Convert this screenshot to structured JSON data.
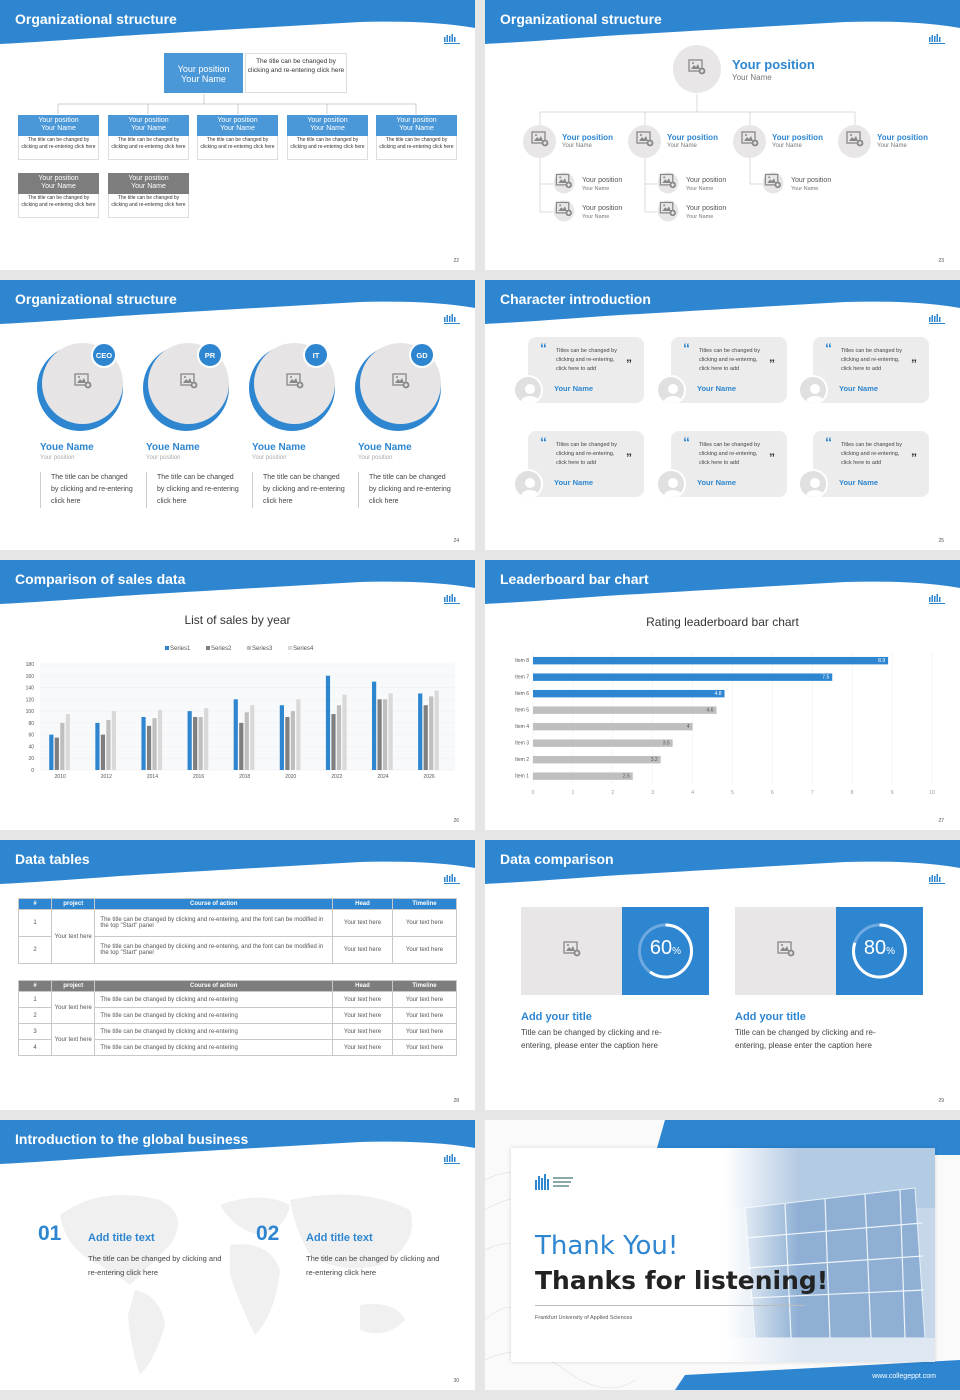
{
  "s1": {
    "title": "Organizational structure",
    "num": "22",
    "top": {
      "pos": "Your position",
      "name": "Your Name",
      "desc": "The title can be changed by clicking and re-entering click here"
    },
    "row1": [
      {
        "pos": "Your position",
        "name": "Your Name",
        "desc": "The title can be changed by clicking and re-entering click here"
      },
      {
        "pos": "Your position",
        "name": "Your Name",
        "desc": "The title can be changed by clicking and re-entering click here"
      },
      {
        "pos": "Your position",
        "name": "Your Name",
        "desc": "The title can be changed by clicking and re-entering click here"
      },
      {
        "pos": "Your position",
        "name": "Your Name",
        "desc": "The title can be changed by clicking and re-entering click here"
      },
      {
        "pos": "Your position",
        "name": "Your Name",
        "desc": "The title can be changed by clicking and re-entering click here"
      }
    ],
    "row2": [
      {
        "pos": "Your position",
        "name": "Your Name",
        "desc": "The title can be changed by clicking and re-entering click here"
      },
      {
        "pos": "Your position",
        "name": "Your Name",
        "desc": "The title can be changed by clicking and re-entering click here"
      }
    ]
  },
  "s2": {
    "title": "Organizational structure",
    "num": "23",
    "top": {
      "pos": "Your position",
      "name": "Your Name"
    },
    "row": [
      {
        "pos": "Your position",
        "name": "Your Name"
      },
      {
        "pos": "Your position",
        "name": "Your Name"
      },
      {
        "pos": "Your position",
        "name": "Your Name"
      },
      {
        "pos": "Your position",
        "name": "Your Name"
      }
    ],
    "sub": [
      {
        "pos": "Your position",
        "name": "Your Name"
      },
      {
        "pos": "Your position",
        "name": "Your Name"
      },
      {
        "pos": "Your position",
        "name": "Your Name"
      },
      {
        "pos": "Your position",
        "name": "Your Name"
      },
      {
        "pos": "Your position",
        "name": "Your Name"
      }
    ]
  },
  "s3": {
    "title": "Organizational structure",
    "num": "24",
    "people": [
      {
        "badge": "CEO",
        "name": "Youe Name",
        "pos": "Your position",
        "desc": "The title can be changed by clicking and re-entering click here"
      },
      {
        "badge": "PR",
        "name": "Youe Name",
        "pos": "Your position",
        "desc": "The title can be changed by clicking and re-entering click here"
      },
      {
        "badge": "IT",
        "name": "Youe Name",
        "pos": "Your position",
        "desc": "The title can be changed by clicking and re-entering click here"
      },
      {
        "badge": "GD",
        "name": "Youe Name",
        "pos": "Your position",
        "desc": "The title can be changed by clicking and re-entering click here"
      }
    ]
  },
  "s4": {
    "title": "Character introduction",
    "num": "25",
    "quote": "Titles can be changed by clicking and re-entering, click here to add",
    "name": "Your Name"
  },
  "s5": {
    "title": "Comparison of sales data",
    "num": "26"
  },
  "s6": {
    "title": "Leaderboard bar chart",
    "num": "27"
  },
  "s7": {
    "title": "Data tables",
    "num": "28",
    "h1": [
      "#",
      "project",
      "Course of action",
      "Head",
      "Timeline"
    ],
    "t1": [
      {
        "n": "1",
        "c": "The title can be changed by clicking and re-entering, and the font can be modified in the top \"Start\" panel"
      },
      {
        "n": "2",
        "c": "The title can be changed by clicking and re-entering, and the font can be modified in the top \"Start\" panel"
      }
    ],
    "proj": "Your text here",
    "cell": "Your text here",
    "t2": [
      {
        "n": "1",
        "c": "The title can be changed by clicking and re-entering"
      },
      {
        "n": "2",
        "c": "The title can be changed by clicking and re-entering"
      },
      {
        "n": "3",
        "c": "The title can be changed by clicking and re-entering"
      },
      {
        "n": "4",
        "c": "The title can be changed by clicking and re-entering"
      }
    ]
  },
  "s8": {
    "title": "Data comparison",
    "num": "29",
    "items": [
      {
        "pct": "60",
        "unit": "%",
        "head": "Add your title",
        "body": "Title can be changed by clicking and re-entering, please enter the caption here"
      },
      {
        "pct": "80",
        "unit": "%",
        "head": "Add your title",
        "body": "Title can be changed by clicking and re-entering, please enter the caption here"
      }
    ]
  },
  "s9": {
    "title": "Introduction to the global business",
    "num": "30",
    "items": [
      {
        "n": "01",
        "head": "Add title text",
        "body": "The title can be changed by clicking and re-entering click here"
      },
      {
        "n": "02",
        "head": "Add title text",
        "body": "The title can be changed by clicking and re-entering click here"
      }
    ]
  },
  "s10": {
    "thank": "Thank You!",
    "thanks2": "Thanks for listening!",
    "uni": "Frankfurt University of Applied Sciences",
    "url": "www.collegeppt.com"
  },
  "chart_data": [
    {
      "type": "bar",
      "title": "List of sales by year",
      "categories": [
        "2010",
        "2012",
        "2014",
        "2016",
        "2018",
        "2020",
        "2022",
        "2024",
        "2026"
      ],
      "series": [
        {
          "name": "Series1",
          "values": [
            60,
            80,
            90,
            100,
            120,
            110,
            160,
            150,
            130
          ]
        },
        {
          "name": "Series2",
          "values": [
            55,
            60,
            75,
            90,
            80,
            90,
            95,
            120,
            110
          ]
        },
        {
          "name": "Series3",
          "values": [
            80,
            85,
            88,
            90,
            98,
            100,
            110,
            120,
            125
          ]
        },
        {
          "name": "Series4",
          "values": [
            95,
            100,
            102,
            105,
            110,
            120,
            128,
            130,
            135
          ]
        }
      ],
      "ylim": [
        0,
        180
      ],
      "yticks": [
        "0",
        "20",
        "40",
        "60",
        "80",
        "100",
        "120",
        "140",
        "160",
        "180"
      ],
      "legend": "top",
      "colors": [
        "#2e86d1",
        "#7f7f7f",
        "#bfbfbf",
        "#d9d9d9"
      ]
    },
    {
      "type": "bar",
      "orientation": "horizontal",
      "title": "Rating leaderboard bar chart",
      "categories": [
        "Item 8",
        "Item 7",
        "Item 6",
        "Item 5",
        "Item 4",
        "Item 3",
        "Item 2",
        "Item 1"
      ],
      "values": [
        8.9,
        7.5,
        4.8,
        4.6,
        4,
        3.5,
        3.2,
        2.5
      ],
      "xlim": [
        0,
        10
      ],
      "xticks": [
        "0",
        "1",
        "2",
        "3",
        "4",
        "5",
        "6",
        "7",
        "8",
        "9",
        "10"
      ],
      "colors": {
        "top": "#2e86d1",
        "rest": "#bfbfbf"
      }
    }
  ]
}
